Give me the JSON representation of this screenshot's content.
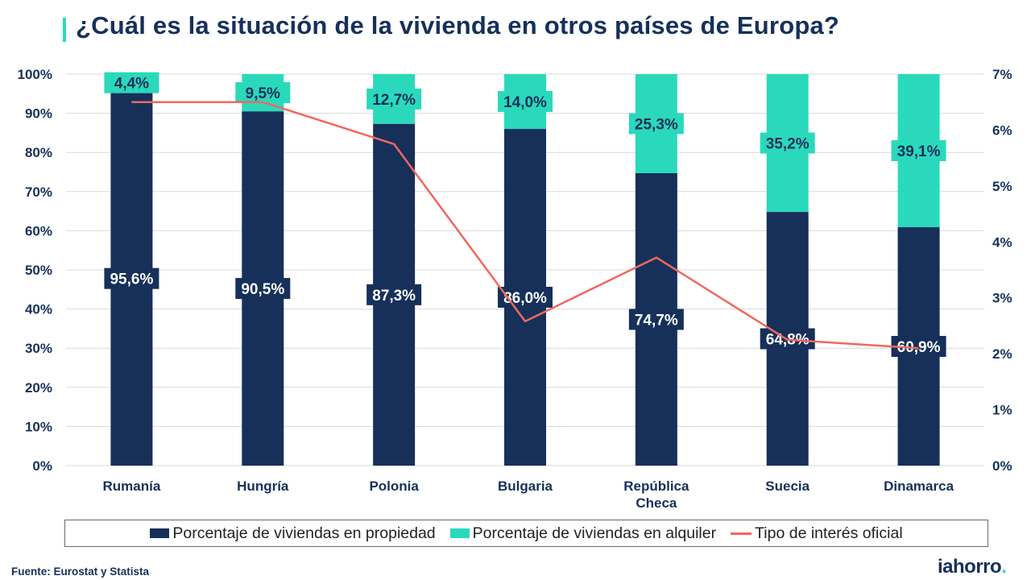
{
  "title": "¿Cuál es la situación de la vivienda en otros países de Europa?",
  "colors": {
    "owned": "#16305a",
    "rented": "#2ad9bb",
    "rate": "#f0685e",
    "accent": "#2ad9bb"
  },
  "legend": {
    "owned": "Porcentaje de viviendas en propiedad",
    "rented": "Porcentaje de viviendas en alquiler",
    "rate": "Tipo de interés oficial"
  },
  "source": "Fuente: Eurostat y Statista",
  "logo": {
    "text": "iahorro",
    "dot": "."
  },
  "chart_data": {
    "type": "bar",
    "stacked": true,
    "categories": [
      [
        "Rumanía"
      ],
      [
        "Hungría"
      ],
      [
        "Polonia"
      ],
      [
        "Bulgaria"
      ],
      [
        "República",
        "Checa"
      ],
      [
        "Suecia"
      ],
      [
        "Dinamarca"
      ]
    ],
    "series": [
      {
        "name": "Porcentaje de viviendas en propiedad",
        "values": [
          95.6,
          90.5,
          87.3,
          86.0,
          74.7,
          64.8,
          60.9
        ],
        "labels": [
          "95,6%",
          "90,5%",
          "87,3%",
          "86,0%",
          "74,7%",
          "64,8%",
          "60,9%"
        ]
      },
      {
        "name": "Porcentaje de viviendas en alquiler",
        "values": [
          4.4,
          9.5,
          12.7,
          14.0,
          25.3,
          35.2,
          39.1
        ],
        "labels": [
          "4,4%",
          "9,5%",
          "12,7%",
          "14,0%",
          "25,3%",
          "35,2%",
          "39,1%"
        ]
      },
      {
        "name": "Tipo de interés oficial",
        "type": "line",
        "axis": "right",
        "values": [
          6.5,
          6.5,
          5.75,
          2.58,
          3.72,
          2.25,
          2.1
        ]
      }
    ],
    "yticks_left": [
      "0%",
      "10%",
      "20%",
      "30%",
      "40%",
      "50%",
      "60%",
      "70%",
      "80%",
      "90%",
      "100%"
    ],
    "yticks_right": [
      "0%",
      "1%",
      "2%",
      "3%",
      "4%",
      "5%",
      "6%",
      "7%"
    ],
    "ylim_left": [
      0,
      100
    ],
    "ylim_right": [
      0,
      7
    ],
    "grid": true,
    "legend_position": "bottom"
  }
}
